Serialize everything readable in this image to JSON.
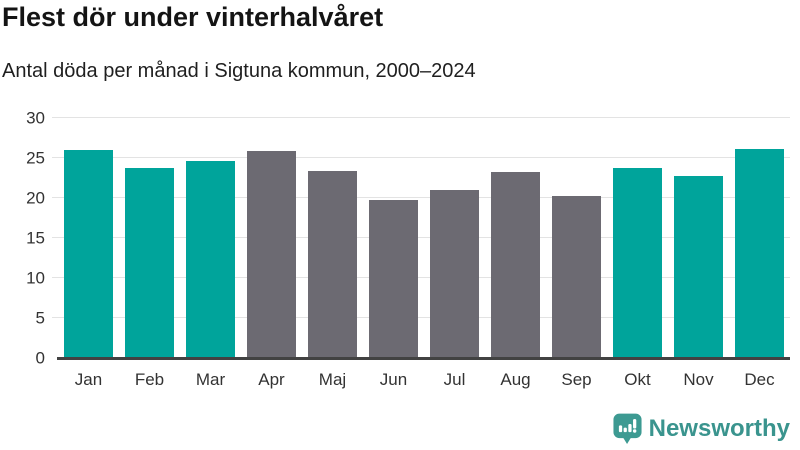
{
  "header": {
    "title": "Flest dör under vinterhalvåret",
    "subtitle": "Antal döda per månad i Sigtuna kommun, 2000–2024"
  },
  "footer": {
    "brand": "Newsworthy"
  },
  "colors": {
    "highlight": "#00a49b",
    "muted": "#6c6a72",
    "axis_line": "#424242",
    "gridline": "#e3e3e3",
    "tick_text": "#333333",
    "brand": "#3a948e",
    "logo_bubble": "#3d9a92"
  },
  "chart_data": {
    "type": "bar",
    "title": "Flest dör under vinterhalvåret",
    "subtitle": "Antal döda per månad i Sigtuna kommun, 2000–2024",
    "categories": [
      "Jan",
      "Feb",
      "Mar",
      "Apr",
      "Maj",
      "Jun",
      "Jul",
      "Aug",
      "Sep",
      "Okt",
      "Nov",
      "Dec"
    ],
    "values": [
      26.0,
      23.7,
      24.6,
      25.9,
      23.4,
      19.7,
      21.0,
      23.2,
      20.2,
      23.7,
      22.7,
      26.1
    ],
    "bar_color_keys": [
      "highlight",
      "highlight",
      "highlight",
      "muted",
      "muted",
      "muted",
      "muted",
      "muted",
      "muted",
      "highlight",
      "highlight",
      "highlight"
    ],
    "xlabel": "",
    "ylabel": "",
    "ylim": [
      0,
      30
    ],
    "yticks": [
      0,
      5,
      10,
      15,
      20,
      25,
      30
    ],
    "grid": true,
    "legend_position": "none"
  }
}
